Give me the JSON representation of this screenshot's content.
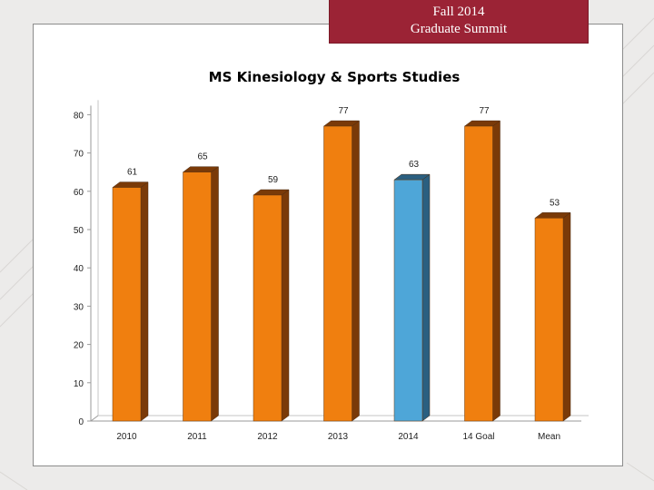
{
  "banner": {
    "line1": "Fall 2014",
    "line2": "Graduate Summit"
  },
  "chart_data": {
    "type": "bar",
    "title": "MS Kinesiology & Sports Studies",
    "categories": [
      "2010",
      "2011",
      "2012",
      "2013",
      "2014",
      "14 Goal",
      "Mean"
    ],
    "values": [
      61,
      65,
      59,
      77,
      63,
      77,
      53
    ],
    "highlight_index": 4,
    "colors": {
      "bar": "#f07f0f",
      "bar_side": "#7a3a08",
      "highlight": "#4ea6d8",
      "highlight_side": "#2a5f80"
    },
    "ylim": [
      0,
      80
    ],
    "yticks": [
      0,
      10,
      20,
      30,
      40,
      50,
      60,
      70,
      80
    ],
    "grid": false,
    "xlabel": "",
    "ylabel": ""
  }
}
